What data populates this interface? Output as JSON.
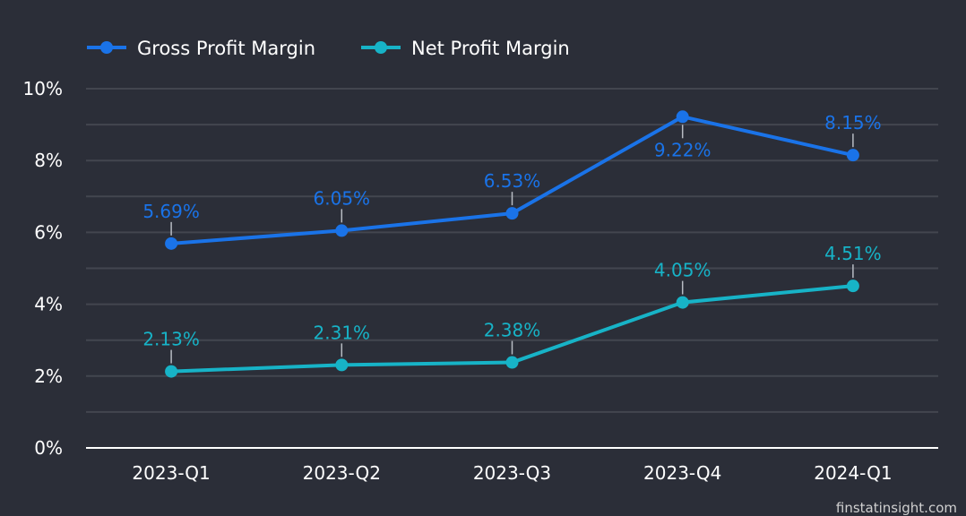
{
  "chart_data": {
    "type": "line",
    "categories": [
      "2023-Q1",
      "2023-Q2",
      "2023-Q3",
      "2023-Q4",
      "2024-Q1"
    ],
    "series": [
      {
        "name": "Gross Profit Margin",
        "values": [
          5.69,
          6.05,
          6.53,
          9.22,
          8.15
        ],
        "labels": [
          "5.69%",
          "6.05%",
          "6.53%",
          "9.22%",
          "8.15%"
        ],
        "label_side": [
          "above",
          "above",
          "above",
          "below",
          "above"
        ],
        "color": "#1a73e8"
      },
      {
        "name": "Net Profit Margin",
        "values": [
          2.13,
          2.31,
          2.38,
          4.05,
          4.51
        ],
        "labels": [
          "2.13%",
          "2.31%",
          "2.38%",
          "4.05%",
          "4.51%"
        ],
        "label_side": [
          "above",
          "above",
          "above",
          "above",
          "above"
        ],
        "color": "#17b3c7"
      }
    ],
    "ylim": [
      0,
      10
    ],
    "yticks": [
      0,
      2,
      4,
      6,
      8,
      10
    ],
    "ytick_labels": [
      "0%",
      "2%",
      "4%",
      "6%",
      "8%",
      "10%"
    ],
    "grid": true,
    "legend_position": "top-left"
  },
  "watermark": "finstatinsight.com",
  "colors": {
    "background": "#2b2e38",
    "grid": "#43464f",
    "axis": "#ffffff",
    "label_connector": "#b8bcc4"
  }
}
